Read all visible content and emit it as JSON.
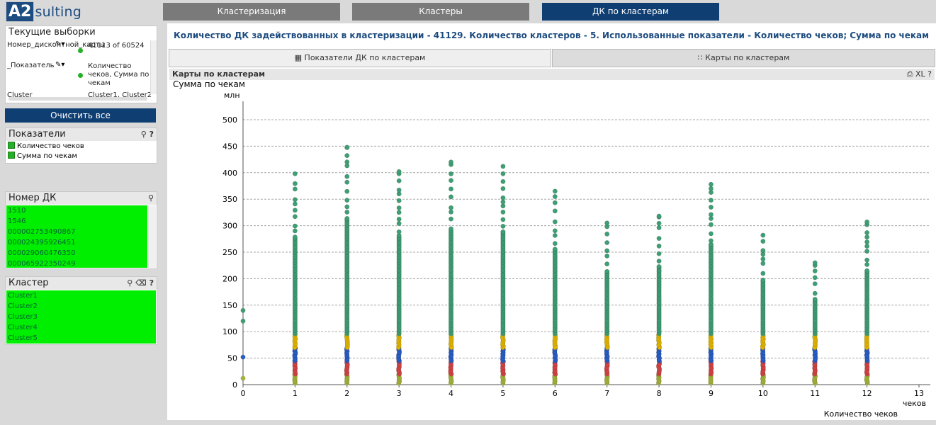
{
  "app": {
    "logo_box": "A2",
    "logo_text": "Consulting"
  },
  "nav": [
    {
      "label": "Кластеризация",
      "active": false
    },
    {
      "label": "Кластеры",
      "active": false
    },
    {
      "label": "ДК по кластерам",
      "active": true
    }
  ],
  "current_selections": {
    "title": "Текущие выборки",
    "rows": [
      {
        "field": "Номер_дисконтной_карты",
        "value": "41113 of 60524"
      },
      {
        "field": "_Показатель",
        "value": "Количество чеков, Сумма по чекам"
      },
      {
        "field": "Cluster",
        "value": "Cluster1, Cluster2"
      }
    ]
  },
  "clear_all": "Очистить все",
  "indicators": {
    "title": "Показатели",
    "items": [
      "Количество чеков",
      "Сумма по чекам"
    ]
  },
  "card_number": {
    "title": "Номер ДК",
    "items": [
      "1510",
      "1546",
      "000002753490867",
      "000024395926451",
      "000029060476350",
      "000065922350249"
    ]
  },
  "cluster": {
    "title": "Кластер",
    "items": [
      "Cluster1",
      "Cluster2",
      "Cluster3",
      "Cluster4",
      "Cluster5"
    ]
  },
  "main": {
    "title": "Количество ДК задействованных в кластеризации - 41129. Количество кластеров - 5. Использованные показатели - Количество чеков; Сумма по чекам",
    "tabs": [
      {
        "label": "Показатели ДК по кластерам",
        "active": false
      },
      {
        "label": "Карты по кластерам",
        "active": true
      }
    ],
    "chart_header": "Карты по кластерам",
    "chart_tools": "XL ?"
  },
  "chart_data": {
    "type": "scatter",
    "title": "",
    "ylabel": "Сумма по чекам",
    "yunit": "млн",
    "xlabel": "Количество чеков",
    "xunit": "чеков",
    "xlim": [
      0,
      13
    ],
    "ylim": [
      0,
      500
    ],
    "xticks": [
      0,
      1,
      2,
      3,
      4,
      5,
      6,
      7,
      8,
      9,
      10,
      11,
      12,
      13
    ],
    "yticks": [
      0,
      50,
      100,
      150,
      200,
      250,
      300,
      350,
      400,
      450,
      500
    ],
    "grid": true,
    "colors": {
      "green": "#3e9e74",
      "yellow": "#e5b800",
      "blue": "#2a5fc9",
      "red": "#d74545",
      "olive": "#a7b53a"
    },
    "columns": [
      {
        "x": 0,
        "max": 140,
        "bands": 0
      },
      {
        "x": 1,
        "max": 398,
        "bands": 1
      },
      {
        "x": 2,
        "max": 448,
        "bands": 1
      },
      {
        "x": 3,
        "max": 402,
        "bands": 1
      },
      {
        "x": 4,
        "max": 420,
        "bands": 1
      },
      {
        "x": 5,
        "max": 412,
        "bands": 1
      },
      {
        "x": 6,
        "max": 365,
        "bands": 1
      },
      {
        "x": 7,
        "max": 305,
        "bands": 1
      },
      {
        "x": 8,
        "max": 318,
        "bands": 1
      },
      {
        "x": 9,
        "max": 378,
        "bands": 1
      },
      {
        "x": 10,
        "max": 282,
        "bands": 1
      },
      {
        "x": 11,
        "max": 230,
        "bands": 1
      },
      {
        "x": 12,
        "max": 307,
        "bands": 1
      }
    ]
  }
}
